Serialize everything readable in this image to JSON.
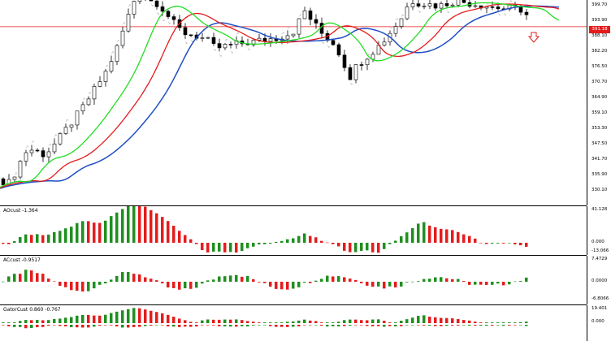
{
  "colors": {
    "bull": "#1f8f1f",
    "bear": "#e41c1c",
    "ma_fast": "#22dd22",
    "ma_mid": "#e41c1c",
    "ma_slow": "#1f4fc4",
    "current_price_line": "#e41c1c",
    "background": "#ffffff"
  },
  "main_chart": {
    "current_price_label": "391.18",
    "price_axis_labels": [
      "399.70",
      "393.90",
      "388.10",
      "382.20",
      "376.50",
      "370.70",
      "364.90",
      "359.10",
      "353.30",
      "347.50",
      "341.70",
      "335.90",
      "330.10"
    ],
    "signal_icon": "down-arrow-icon"
  },
  "ao_pane": {
    "title": "AOcust -1.364",
    "axis_labels": [
      "41.128",
      "0.000",
      "-13.066"
    ]
  },
  "ac_pane": {
    "title": "ACcust -0.9517",
    "axis_labels": [
      "7.4729",
      "0.0000",
      "-6.8066"
    ]
  },
  "gator_pane": {
    "title": "GatorCust 0.860 -0.767",
    "axis_labels": [
      "19.401",
      "0.000"
    ]
  }
}
